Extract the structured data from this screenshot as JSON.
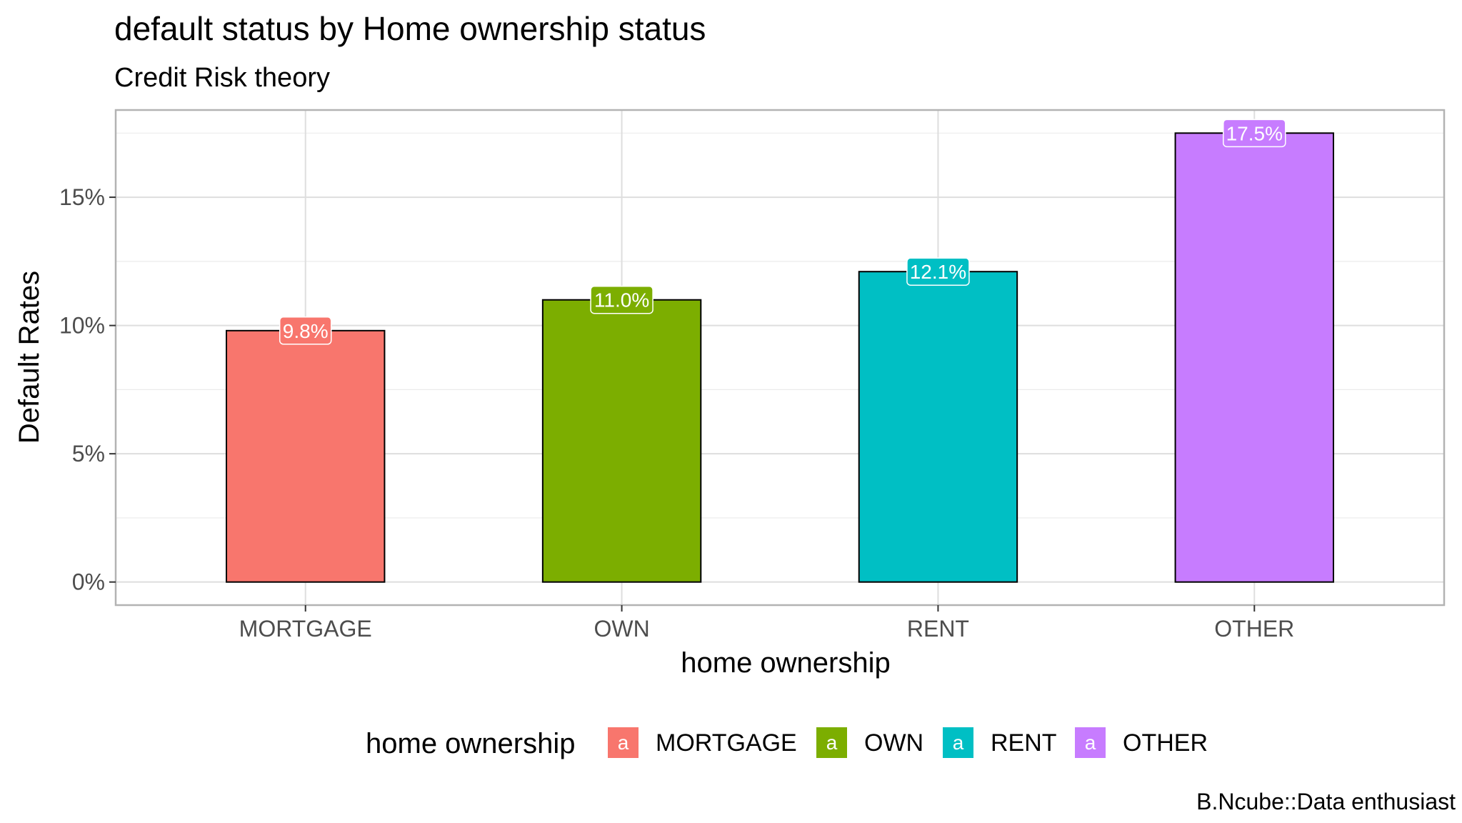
{
  "chart_data": {
    "type": "bar",
    "title": "default status by Home ownership status",
    "subtitle": "Credit Risk theory",
    "xlabel": "home ownership",
    "ylabel": "Default Rates",
    "caption": "B.Ncube::Data enthusiast",
    "categories": [
      "MORTGAGE",
      "OWN",
      "RENT",
      "OTHER"
    ],
    "values": [
      9.8,
      11.0,
      12.1,
      17.5
    ],
    "data_labels": [
      "9.8%",
      "11.0%",
      "12.1%",
      "17.5%"
    ],
    "colors": [
      "#F8766D",
      "#7CAE00",
      "#00BFC4",
      "#C77CFF"
    ],
    "ylim": [
      -0.9,
      18.4
    ],
    "y_ticks": [
      0,
      5,
      10,
      15
    ],
    "y_tick_labels": [
      "0%",
      "5%",
      "10%",
      "15%"
    ],
    "y_minor_ticks": [
      2.5,
      7.5,
      12.5,
      17.5
    ],
    "grid": true,
    "legend": {
      "title": "home ownership",
      "position": "bottom",
      "key_glyph": "a",
      "entries": [
        "MORTGAGE",
        "OWN",
        "RENT",
        "OTHER"
      ]
    }
  }
}
